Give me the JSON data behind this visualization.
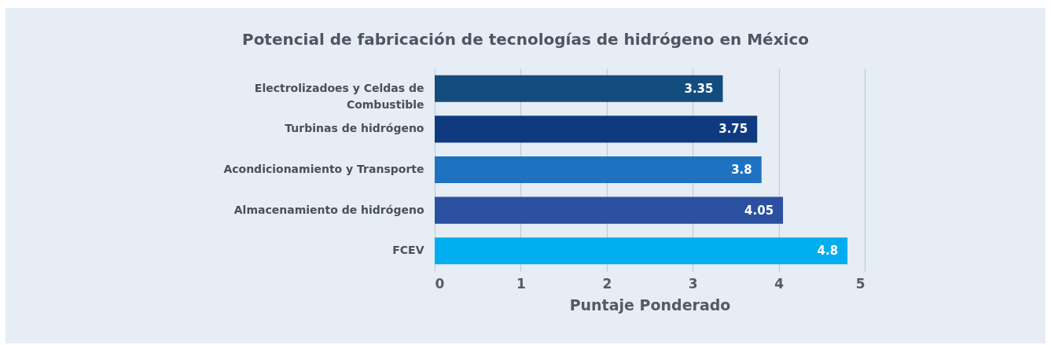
{
  "chart_data": {
    "type": "bar",
    "orientation": "horizontal",
    "title": "Potencial de fabricación de tecnologías de hidrógeno en México",
    "xlabel": "Puntaje Ponderado",
    "categories": [
      "Electrolizadoes y Celdas de Combustible",
      "Turbinas de hidrógeno",
      "Acondicionamiento y Transporte",
      "Almacenamiento de hidrógeno",
      "FCEV"
    ],
    "values": [
      3.35,
      3.75,
      3.8,
      4.05,
      4.8
    ],
    "colors": [
      "#134d7e",
      "#0f3a80",
      "#1f72bf",
      "#2b50a0",
      "#00aeef"
    ],
    "xlim": [
      0,
      5
    ],
    "xticks": [
      0,
      1,
      2,
      3,
      4,
      5
    ],
    "grid": "x",
    "data_labels": true
  }
}
